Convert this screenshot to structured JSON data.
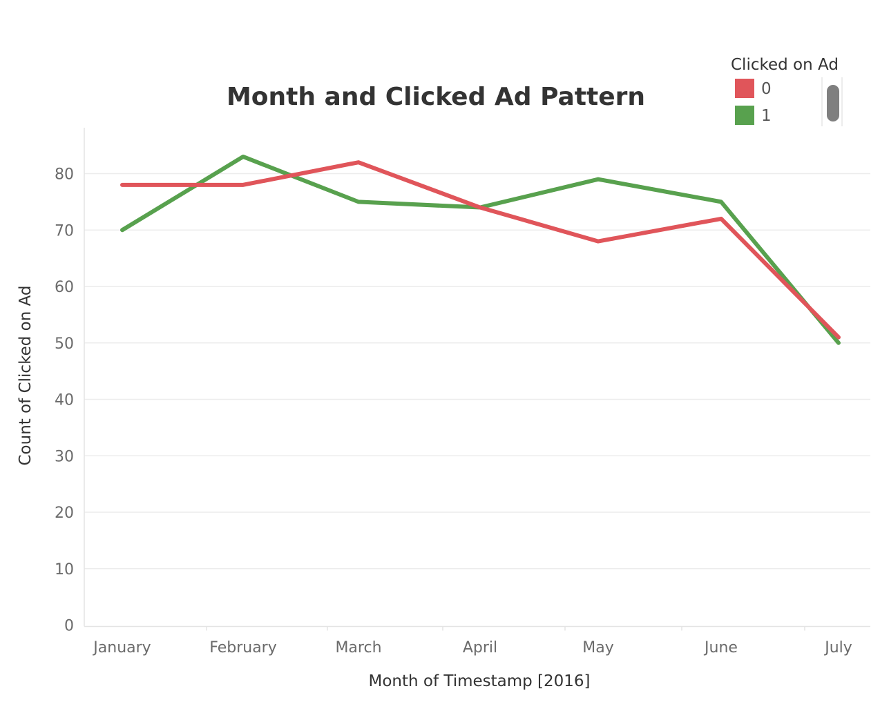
{
  "chart_data": {
    "type": "line",
    "title": "Month and Clicked Ad Pattern",
    "xlabel": "Month of Timestamp [2016]",
    "ylabel": "Count of Clicked on Ad",
    "categories": [
      "January",
      "February",
      "March",
      "April",
      "May",
      "June",
      "July"
    ],
    "ylim": [
      0,
      88
    ],
    "yticks": [
      0,
      10,
      20,
      30,
      40,
      50,
      60,
      70,
      80
    ],
    "grid": true,
    "legend": {
      "title": "Clicked on Ad",
      "placement": "top-right"
    },
    "series": [
      {
        "name": "0",
        "color": "#e0555a",
        "values": [
          78,
          78,
          82,
          74,
          68,
          72,
          51
        ]
      },
      {
        "name": "1",
        "color": "#58a14e",
        "values": [
          70,
          83,
          75,
          74,
          79,
          75,
          50
        ]
      }
    ]
  }
}
